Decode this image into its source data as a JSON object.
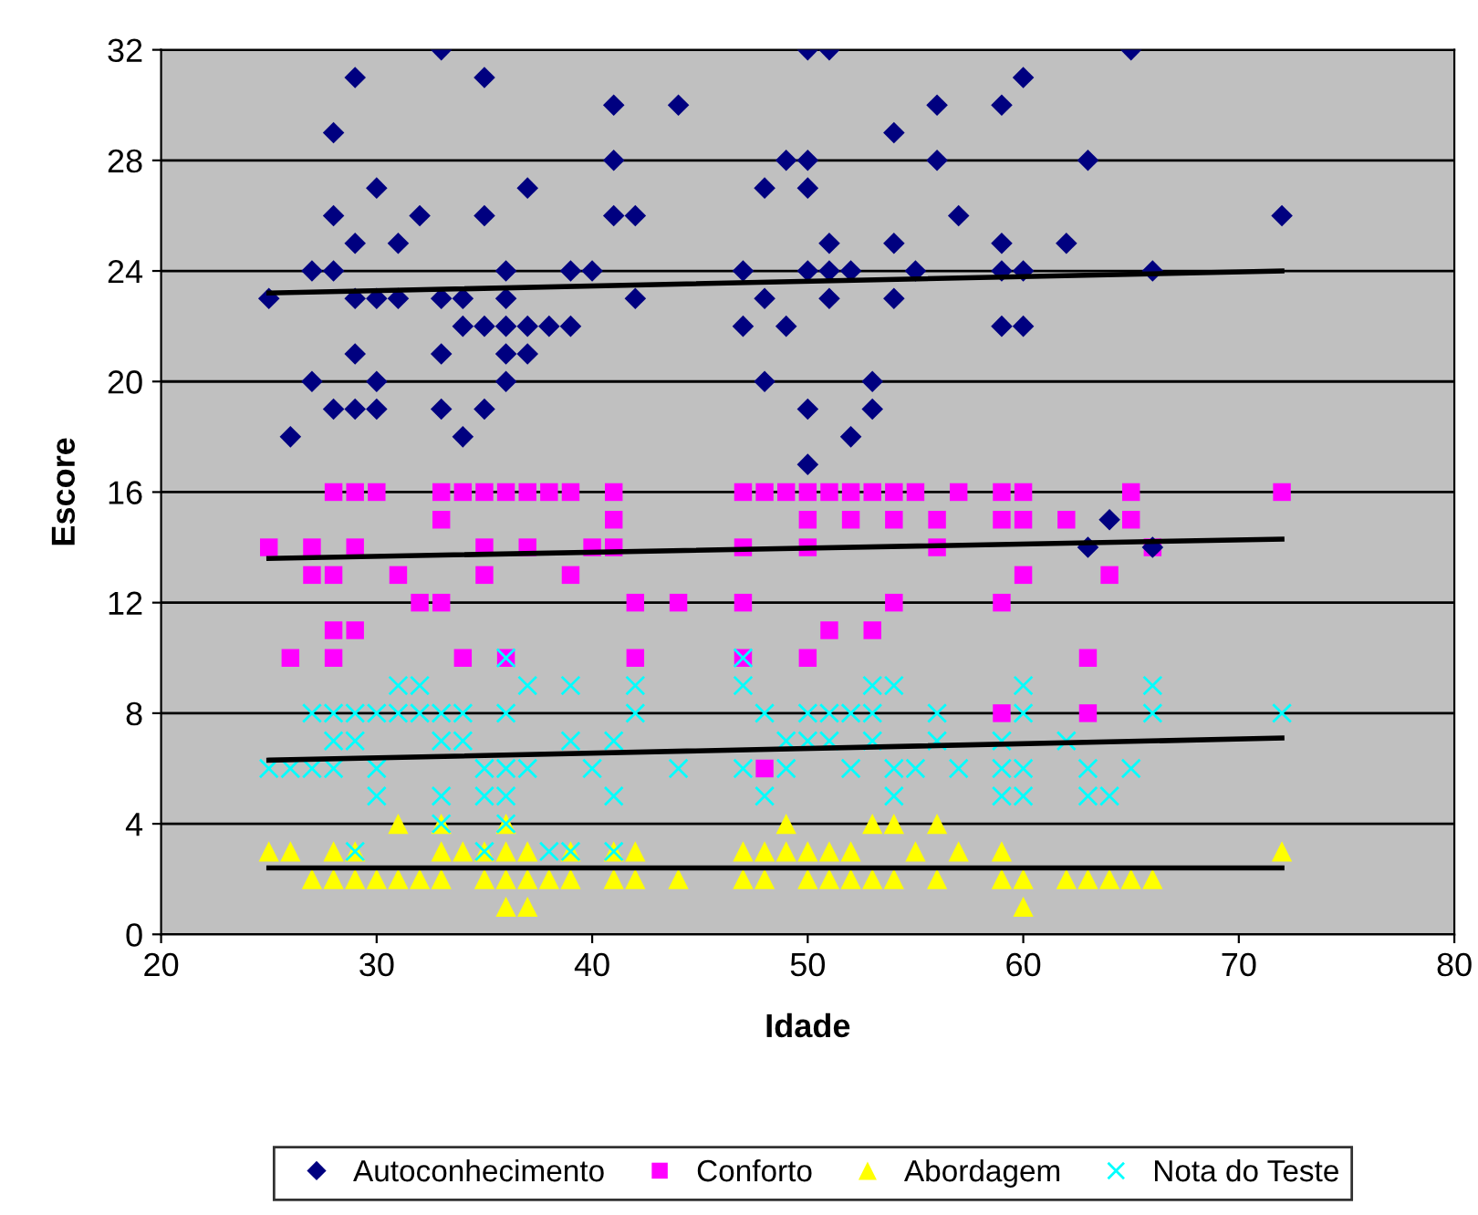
{
  "chart_data": {
    "type": "scatter",
    "xlabel": "Idade",
    "ylabel": "Escore",
    "xlim": [
      20,
      80
    ],
    "xticks": [
      20,
      30,
      40,
      50,
      60,
      70,
      80
    ],
    "ylim": [
      0,
      32
    ],
    "yticks": [
      0,
      4,
      8,
      12,
      16,
      20,
      24,
      28,
      32
    ],
    "grid": "y",
    "legend": "bottom",
    "series": [
      {
        "name": "Autoconhecimento",
        "color": "#000080",
        "marker": "diamond",
        "x": [
          25,
          26,
          27,
          27,
          28,
          28,
          28,
          28,
          29,
          29,
          29,
          29,
          29,
          30,
          30,
          30,
          30,
          31,
          31,
          32,
          33,
          33,
          33,
          33,
          34,
          34,
          34,
          35,
          35,
          35,
          35,
          36,
          36,
          36,
          36,
          36,
          37,
          37,
          37,
          38,
          39,
          39,
          40,
          41,
          41,
          41,
          42,
          42,
          44,
          47,
          47,
          48,
          48,
          48,
          49,
          49,
          50,
          50,
          50,
          50,
          50,
          50,
          51,
          51,
          51,
          51,
          52,
          52,
          53,
          53,
          54,
          54,
          54,
          55,
          56,
          56,
          57,
          59,
          59,
          59,
          59,
          60,
          60,
          60,
          62,
          63,
          63,
          64,
          65,
          66,
          66,
          72
        ],
        "values": [
          23,
          18,
          24,
          20,
          29,
          26,
          24,
          19,
          31,
          25,
          23,
          21,
          19,
          27,
          23,
          20,
          19,
          25,
          23,
          26,
          32,
          23,
          21,
          19,
          23,
          22,
          18,
          31,
          26,
          22,
          19,
          24,
          23,
          22,
          21,
          20,
          27,
          22,
          21,
          22,
          24,
          22,
          24,
          30,
          28,
          26,
          26,
          23,
          30,
          24,
          22,
          27,
          23,
          20,
          28,
          22,
          32,
          28,
          27,
          24,
          19,
          17,
          32,
          25,
          24,
          23,
          24,
          18,
          20,
          19,
          29,
          25,
          23,
          24,
          30,
          28,
          26,
          30,
          25,
          24,
          22,
          31,
          24,
          22,
          25,
          28,
          14,
          15,
          32,
          24,
          14,
          26
        ]
      },
      {
        "name": "Conforto",
        "color": "#ff00ff",
        "marker": "square",
        "x": [
          28,
          29,
          30,
          33,
          34,
          35,
          36,
          37,
          38,
          39,
          41,
          47,
          48,
          49,
          50,
          51,
          52,
          53,
          54,
          55,
          57,
          59,
          60,
          65,
          72,
          25,
          26,
          27,
          27,
          28,
          28,
          28,
          29,
          29,
          31,
          32,
          33,
          33,
          34,
          35,
          35,
          36,
          37,
          39,
          40,
          41,
          41,
          42,
          42,
          44,
          47,
          47,
          47,
          48,
          50,
          50,
          50,
          51,
          52,
          53,
          54,
          54,
          56,
          56,
          59,
          59,
          59,
          60,
          60,
          62,
          63,
          63,
          64,
          65,
          66
        ],
        "values": [
          16,
          16,
          16,
          16,
          16,
          16,
          16,
          16,
          16,
          16,
          16,
          16,
          16,
          16,
          16,
          16,
          16,
          16,
          16,
          16,
          16,
          16,
          16,
          16,
          16,
          14,
          10,
          14,
          13,
          13,
          11,
          10,
          14,
          11,
          13,
          12,
          15,
          12,
          10,
          14,
          13,
          10,
          14,
          13,
          14,
          15,
          14,
          12,
          10,
          12,
          12,
          14,
          10,
          6,
          15,
          14,
          10,
          11,
          15,
          11,
          15,
          12,
          15,
          14,
          15,
          12,
          8,
          15,
          13,
          15,
          10,
          8,
          13,
          15,
          14
        ]
      },
      {
        "name": "Abordagem",
        "color": "#ffff00",
        "marker": "triangle",
        "x": [
          25,
          26,
          27,
          28,
          28,
          29,
          29,
          30,
          31,
          31,
          32,
          33,
          33,
          33,
          34,
          35,
          35,
          36,
          36,
          36,
          36,
          37,
          37,
          37,
          38,
          39,
          39,
          41,
          41,
          42,
          42,
          44,
          47,
          47,
          48,
          48,
          49,
          49,
          50,
          50,
          51,
          51,
          52,
          52,
          53,
          53,
          54,
          54,
          55,
          56,
          56,
          57,
          59,
          59,
          60,
          60,
          62,
          63,
          64,
          65,
          66,
          72
        ],
        "values": [
          3,
          3,
          2,
          3,
          2,
          3,
          2,
          2,
          4,
          2,
          2,
          4,
          3,
          2,
          3,
          3,
          2,
          4,
          3,
          2,
          1,
          3,
          2,
          1,
          2,
          3,
          2,
          3,
          2,
          3,
          2,
          2,
          3,
          2,
          3,
          2,
          4,
          3,
          3,
          2,
          3,
          2,
          3,
          2,
          4,
          2,
          4,
          2,
          3,
          4,
          2,
          3,
          3,
          2,
          2,
          1,
          2,
          2,
          2,
          2,
          2,
          3
        ]
      },
      {
        "name": "Nota do Teste",
        "color": "#00ffff",
        "marker": "cross",
        "x": [
          25,
          26,
          27,
          27,
          28,
          28,
          28,
          29,
          29,
          29,
          30,
          30,
          30,
          31,
          31,
          32,
          32,
          33,
          33,
          33,
          33,
          34,
          34,
          35,
          35,
          35,
          36,
          36,
          36,
          36,
          36,
          37,
          37,
          38,
          39,
          39,
          39,
          40,
          41,
          41,
          41,
          42,
          42,
          44,
          47,
          47,
          47,
          48,
          48,
          49,
          49,
          50,
          50,
          51,
          51,
          52,
          52,
          53,
          53,
          53,
          54,
          54,
          54,
          55,
          56,
          56,
          57,
          59,
          59,
          59,
          60,
          60,
          60,
          60,
          62,
          63,
          63,
          64,
          65,
          66,
          66,
          72
        ],
        "values": [
          6,
          6,
          6,
          8,
          8,
          7,
          6,
          7,
          8,
          3,
          8,
          6,
          5,
          9,
          8,
          9,
          8,
          8,
          7,
          5,
          4,
          8,
          7,
          6,
          5,
          3,
          10,
          8,
          6,
          5,
          4,
          9,
          6,
          3,
          9,
          7,
          3,
          6,
          7,
          5,
          3,
          9,
          8,
          6,
          10,
          9,
          6,
          8,
          5,
          7,
          6,
          8,
          7,
          8,
          7,
          8,
          6,
          9,
          8,
          7,
          9,
          6,
          5,
          6,
          8,
          7,
          6,
          7,
          6,
          5,
          9,
          8,
          6,
          5,
          7,
          6,
          5,
          5,
          6,
          9,
          8,
          8
        ]
      },
      {
        "type": "line",
        "color": "#000000",
        "x": [
          25,
          72
        ],
        "values": [
          23.2,
          24.0
        ]
      },
      {
        "type": "line",
        "color": "#000000",
        "x": [
          25,
          72
        ],
        "values": [
          13.6,
          14.3
        ]
      },
      {
        "type": "line",
        "color": "#000000",
        "x": [
          25,
          72
        ],
        "values": [
          6.3,
          7.1
        ]
      },
      {
        "type": "line",
        "color": "#000000",
        "x": [
          25,
          72
        ],
        "values": [
          2.4,
          2.4
        ]
      }
    ]
  }
}
